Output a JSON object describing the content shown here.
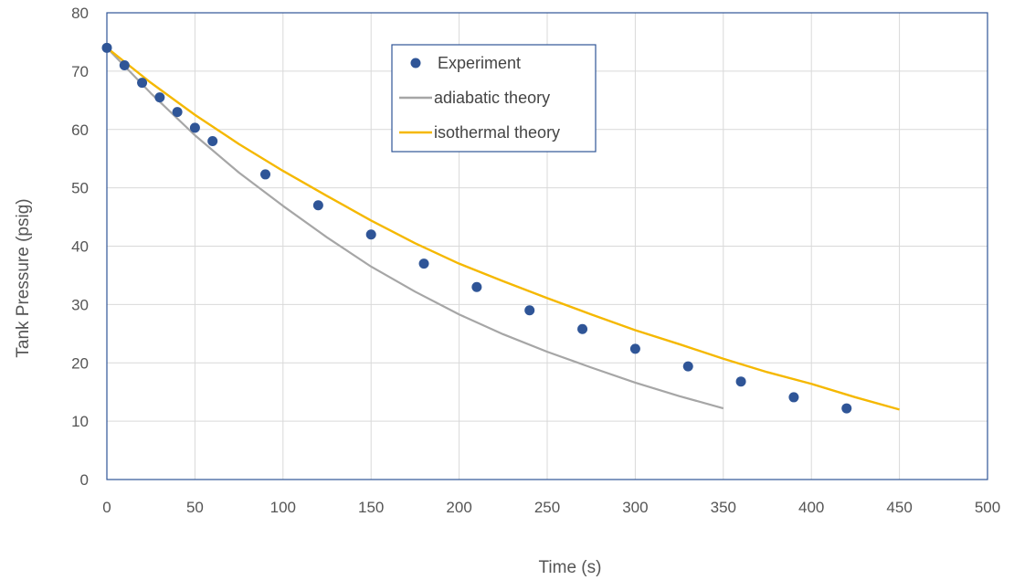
{
  "chart_data": {
    "type": "scatter",
    "title": "",
    "xlabel": "Time (s)",
    "ylabel": "Tank Pressure (psig)",
    "xlim": [
      0,
      500
    ],
    "ylim": [
      0,
      80
    ],
    "xticks": [
      0,
      50,
      100,
      150,
      200,
      250,
      300,
      350,
      400,
      450,
      500
    ],
    "yticks": [
      0,
      10,
      20,
      30,
      40,
      50,
      60,
      70,
      80
    ],
    "grid": true,
    "legend_position": "top-center",
    "series": [
      {
        "name": "Experiment",
        "kind": "scatter",
        "color": "#2F5597",
        "x": [
          0,
          10,
          20,
          30,
          40,
          50,
          60,
          90,
          120,
          150,
          180,
          210,
          240,
          270,
          300,
          330,
          360,
          390,
          420
        ],
        "y": [
          74,
          71,
          68,
          65.5,
          63,
          60.3,
          58,
          52.3,
          47,
          42,
          37,
          33,
          29,
          25.8,
          22.4,
          19.4,
          16.8,
          14.1,
          12.2
        ]
      },
      {
        "name": "adiabatic theory",
        "kind": "line",
        "color": "#A6A6A6",
        "x": [
          0,
          25,
          50,
          75,
          100,
          125,
          150,
          175,
          200,
          225,
          250,
          275,
          300,
          325,
          350
        ],
        "y": [
          74,
          66.2,
          59,
          52.6,
          46.9,
          41.5,
          36.5,
          32.2,
          28.3,
          24.9,
          21.9,
          19.2,
          16.6,
          14.3,
          12.2
        ]
      },
      {
        "name": "isothermal theory",
        "kind": "line",
        "color": "#F5B800",
        "x": [
          0,
          25,
          50,
          75,
          100,
          125,
          150,
          175,
          200,
          225,
          250,
          275,
          300,
          325,
          350,
          375,
          400,
          425,
          450
        ],
        "y": [
          74,
          68,
          62.5,
          57.5,
          52.9,
          48.6,
          44.4,
          40.5,
          37,
          34,
          31.1,
          28.3,
          25.6,
          23.2,
          20.7,
          18.4,
          16.4,
          14.1,
          12
        ]
      }
    ]
  }
}
